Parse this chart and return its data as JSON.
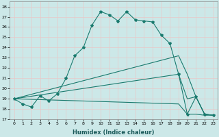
{
  "xlabel": "Humidex (Indice chaleur)",
  "bg_color": "#cce8e8",
  "grid_color": "#b0d0d0",
  "line_color": "#1a7a6e",
  "xlim": [
    -0.5,
    23.5
  ],
  "ylim": [
    17,
    28.5
  ],
  "xticks": [
    0,
    1,
    2,
    3,
    4,
    5,
    6,
    7,
    8,
    9,
    10,
    11,
    12,
    13,
    14,
    15,
    16,
    17,
    18,
    19,
    20,
    21,
    22,
    23
  ],
  "yticks": [
    17,
    18,
    19,
    20,
    21,
    22,
    23,
    24,
    25,
    26,
    27,
    28
  ],
  "series1_x": [
    0,
    1,
    2,
    3,
    4,
    5,
    6,
    7,
    8,
    9,
    10,
    11,
    12,
    13,
    14,
    15,
    16,
    17,
    18,
    19,
    20,
    21,
    22,
    23
  ],
  "series1_y": [
    19.0,
    18.5,
    18.2,
    19.3,
    18.8,
    19.5,
    21.0,
    23.2,
    24.0,
    26.2,
    27.5,
    27.2,
    26.6,
    27.5,
    26.7,
    26.6,
    26.5,
    25.2,
    24.4,
    21.4,
    17.5,
    19.2,
    17.5,
    17.4
  ],
  "series2_x": [
    0,
    19,
    20,
    21,
    22,
    23
  ],
  "series2_y": [
    19.0,
    23.2,
    21.4,
    19.2,
    17.5,
    17.4
  ],
  "series3_x": [
    0,
    19,
    20,
    21,
    22,
    23
  ],
  "series3_y": [
    19.0,
    21.4,
    19.0,
    19.2,
    17.5,
    17.4
  ],
  "series4_x": [
    0,
    19,
    20,
    21,
    22,
    23
  ],
  "series4_y": [
    19.0,
    18.5,
    17.5,
    17.5,
    17.4,
    17.4
  ]
}
